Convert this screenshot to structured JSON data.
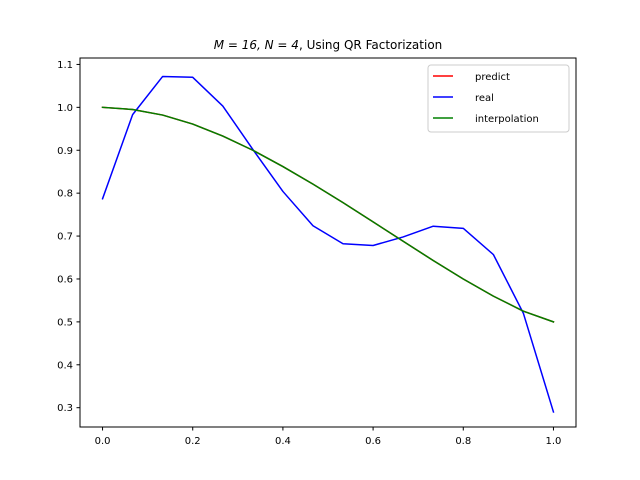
{
  "chart_data": {
    "type": "line",
    "title_parts": {
      "math": "M = 16, N = 4",
      "text": ", Using QR Factorization"
    },
    "xlabel": "",
    "ylabel": "",
    "xlim": [
      -0.05,
      1.05
    ],
    "ylim": [
      0.255,
      1.115
    ],
    "xticks": [
      0.0,
      0.2,
      0.4,
      0.6,
      0.8,
      1.0
    ],
    "xtick_labels": [
      "0.0",
      "0.2",
      "0.4",
      "0.6",
      "0.8",
      "1.0"
    ],
    "yticks": [
      0.3,
      0.4,
      0.5,
      0.6,
      0.7,
      0.8,
      0.9,
      1.0,
      1.1
    ],
    "ytick_labels": [
      "0.3",
      "0.4",
      "0.5",
      "0.6",
      "0.7",
      "0.8",
      "0.9",
      "1.0",
      "1.1"
    ],
    "grid": false,
    "legend_placement": "top-right",
    "x": [
      0.0,
      0.0667,
      0.1333,
      0.2,
      0.2667,
      0.3333,
      0.4,
      0.4667,
      0.5333,
      0.6,
      0.6667,
      0.7333,
      0.8,
      0.8667,
      0.9333,
      1.0
    ],
    "series": [
      {
        "name": "predict",
        "color": "#ff0000",
        "values": [
          1.0,
          0.995,
          0.982,
          0.961,
          0.933,
          0.9,
          0.862,
          0.821,
          0.778,
          0.733,
          0.688,
          0.643,
          0.6,
          0.56,
          0.525,
          0.5
        ]
      },
      {
        "name": "real",
        "color": "#0000ff",
        "values": [
          0.787,
          0.983,
          1.072,
          1.07,
          1.003,
          0.902,
          0.804,
          0.724,
          0.682,
          0.678,
          0.698,
          0.723,
          0.718,
          0.657,
          0.52,
          0.29
        ]
      },
      {
        "name": "interpolation",
        "color": "#008000",
        "values": [
          1.0,
          0.995,
          0.982,
          0.961,
          0.933,
          0.9,
          0.862,
          0.821,
          0.778,
          0.733,
          0.688,
          0.643,
          0.6,
          0.56,
          0.525,
          0.5
        ]
      }
    ]
  }
}
